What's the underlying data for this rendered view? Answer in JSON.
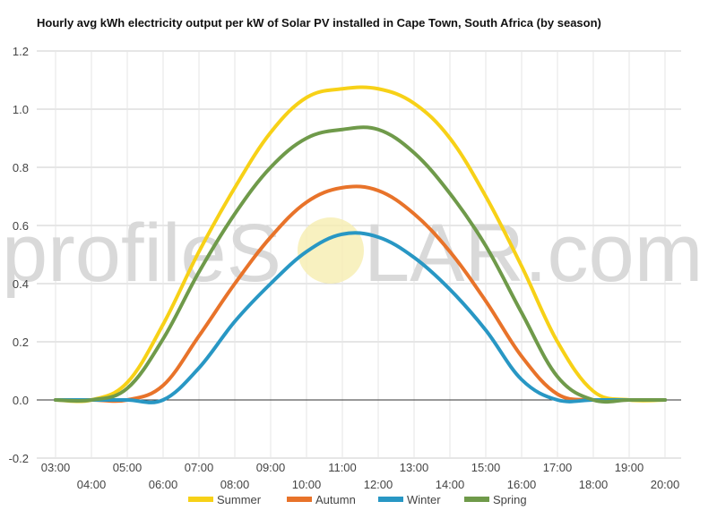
{
  "watermark": {
    "text_left": "profileS",
    "text_right": "LAR.com"
  },
  "chart_data": {
    "type": "line",
    "title": "Hourly avg kWh electricity output per kW of Solar PV installed in Cape Town, South Africa (by season)",
    "xlabel": "",
    "ylabel": "",
    "ylim": [
      -0.2,
      1.2
    ],
    "yticks": [
      -0.2,
      0.0,
      0.2,
      0.4,
      0.6,
      0.8,
      1.0,
      1.2
    ],
    "ytick_labels": [
      "-0.2",
      "0.0",
      "0.2",
      "0.4",
      "0.6",
      "0.8",
      "1.0",
      "1.2"
    ],
    "categories": [
      "03:00",
      "04:00",
      "05:00",
      "06:00",
      "07:00",
      "08:00",
      "09:00",
      "10:00",
      "11:00",
      "12:00",
      "13:00",
      "14:00",
      "15:00",
      "16:00",
      "17:00",
      "18:00",
      "19:00",
      "20:00"
    ],
    "grid": true,
    "legend_position": "bottom",
    "series": [
      {
        "name": "Summer",
        "color": "#f7d117",
        "values": [
          0.0,
          0.0,
          0.06,
          0.26,
          0.51,
          0.73,
          0.92,
          1.04,
          1.07,
          1.07,
          1.02,
          0.9,
          0.7,
          0.46,
          0.2,
          0.03,
          0.0,
          0.0
        ]
      },
      {
        "name": "Autumn",
        "color": "#e8732a",
        "values": [
          0.0,
          0.0,
          0.0,
          0.05,
          0.22,
          0.4,
          0.56,
          0.68,
          0.73,
          0.72,
          0.64,
          0.51,
          0.34,
          0.15,
          0.02,
          0.0,
          0.0,
          0.0
        ]
      },
      {
        "name": "Winter",
        "color": "#2897c4",
        "values": [
          0.0,
          0.0,
          0.0,
          0.0,
          0.11,
          0.27,
          0.4,
          0.51,
          0.57,
          0.56,
          0.49,
          0.38,
          0.24,
          0.07,
          0.0,
          0.0,
          0.0,
          0.0
        ]
      },
      {
        "name": "Spring",
        "color": "#6f9a4a",
        "values": [
          0.0,
          0.0,
          0.04,
          0.21,
          0.44,
          0.64,
          0.8,
          0.9,
          0.93,
          0.93,
          0.85,
          0.71,
          0.53,
          0.3,
          0.08,
          0.0,
          0.0,
          0.0
        ]
      }
    ]
  }
}
